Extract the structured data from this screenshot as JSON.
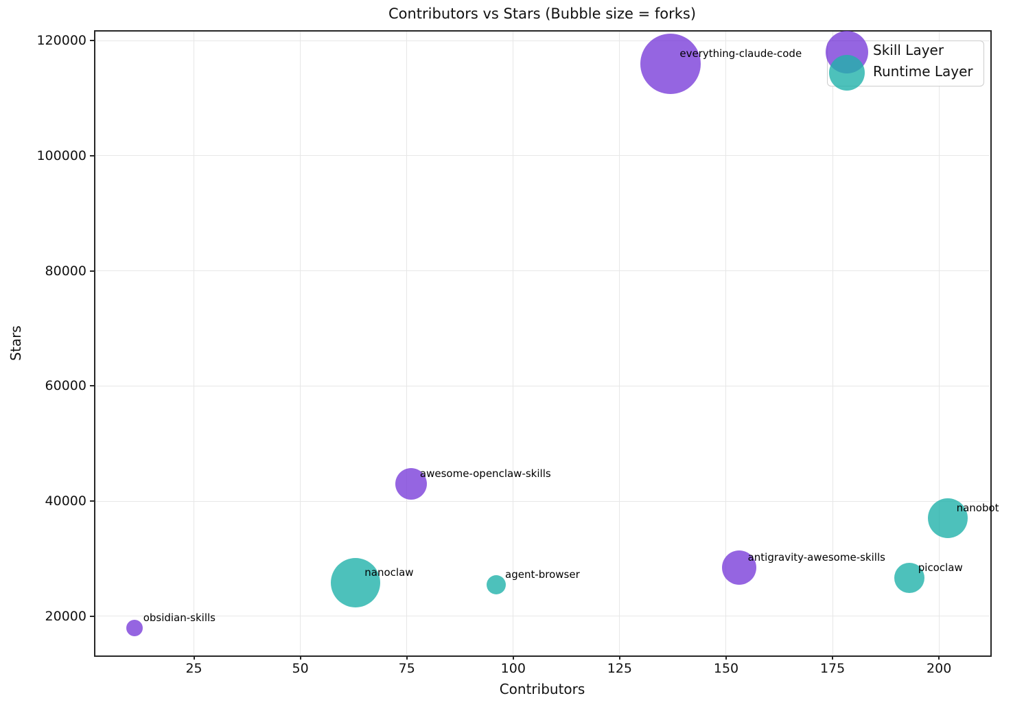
{
  "title": "Contributors vs Stars (Bubble size = forks)",
  "colors": {
    "skill_rgba": "rgba(122,62,218,0.8)",
    "runtime_rgba": "rgba(32,178,170,0.8)",
    "grid": "#e7e7e7",
    "spine": "#262626",
    "text": "#111111"
  },
  "legend": {
    "items": [
      {
        "label": "Skill Layer",
        "color_key": "skill_rgba"
      },
      {
        "label": "Runtime Layer",
        "color_key": "runtime_rgba"
      }
    ]
  },
  "chart_data": {
    "type": "scatter",
    "subtype": "bubble",
    "title": "Contributors vs Stars (Bubble size = forks)",
    "xlabel": "Contributors",
    "ylabel": "Stars",
    "size_represents": "forks",
    "grid": true,
    "legend_position": "upper right",
    "xlim": [
      1.7,
      211.9
    ],
    "ylim": [
      13300,
      121700
    ],
    "x_ticks": [
      25,
      50,
      75,
      100,
      125,
      150,
      175,
      200
    ],
    "y_ticks": [
      20000,
      40000,
      60000,
      80000,
      100000,
      120000
    ],
    "series": [
      {
        "name": "Skill Layer",
        "color_key": "skill_rgba",
        "points": [
          {
            "label": "everything-claude-code",
            "contributors": 137,
            "stars": 116000,
            "bubble_radius_px": 44
          },
          {
            "label": "awesome-openclaw-skills",
            "contributors": 76,
            "stars": 43000,
            "bubble_radius_px": 23
          },
          {
            "label": "antigravity-awesome-skills",
            "contributors": 153,
            "stars": 28500,
            "bubble_radius_px": 25
          },
          {
            "label": "obsidian-skills",
            "contributors": 11,
            "stars": 18000,
            "bubble_radius_px": 12
          }
        ]
      },
      {
        "name": "Runtime Layer",
        "color_key": "runtime_rgba",
        "points": [
          {
            "label": "nanoclaw",
            "contributors": 63,
            "stars": 25800,
            "bubble_radius_px": 36
          },
          {
            "label": "agent-browser",
            "contributors": 96,
            "stars": 25500,
            "bubble_radius_px": 14
          },
          {
            "label": "picoclaw",
            "contributors": 193,
            "stars": 26600,
            "bubble_radius_px": 22
          },
          {
            "label": "nanobot",
            "contributors": 202,
            "stars": 37000,
            "bubble_radius_px": 29
          }
        ]
      }
    ]
  }
}
